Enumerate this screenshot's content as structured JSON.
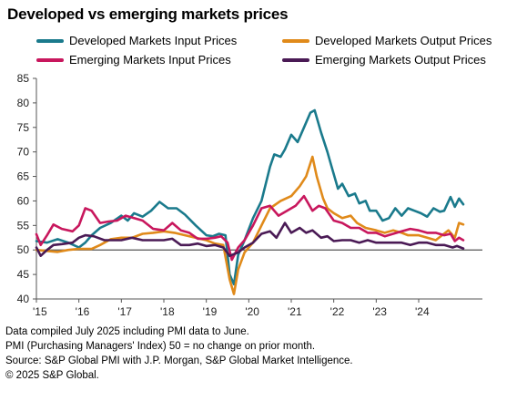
{
  "title": "Developed vs emerging markets prices",
  "notes": [
    "Data compiled July 2025 including PMI data to June.",
    "PMI (Purchasing Managers' Index) 50 = no change on prior month.",
    "Source: S&P Global PMI with J.P. Morgan, S&P Global Market Intelligence.",
    "© 2025 S&P Global."
  ],
  "chart_data": {
    "type": "line",
    "title": "Developed vs emerging markets prices",
    "xlabel": "",
    "ylabel": "",
    "ylim": [
      40,
      85
    ],
    "yticks": [
      40,
      45,
      50,
      55,
      60,
      65,
      70,
      75,
      80,
      85
    ],
    "xlim": [
      2015.0,
      2025.5
    ],
    "xticks": [
      {
        "x": 2015,
        "label": "'15"
      },
      {
        "x": 2016,
        "label": "'16"
      },
      {
        "x": 2017,
        "label": "'17"
      },
      {
        "x": 2018,
        "label": "'18"
      },
      {
        "x": 2019,
        "label": "'19"
      },
      {
        "x": 2020,
        "label": "'20"
      },
      {
        "x": 2021,
        "label": "'21"
      },
      {
        "x": 2022,
        "label": "'22"
      },
      {
        "x": 2023,
        "label": "'23"
      },
      {
        "x": 2024,
        "label": "'24"
      }
    ],
    "reference_line": 50,
    "grid": false,
    "legend_position": "top",
    "series": [
      {
        "name": "Developed Markets Input Prices",
        "color": "#1a7a8c",
        "points": [
          [
            2015.0,
            51.8
          ],
          [
            2015.25,
            51.5
          ],
          [
            2015.5,
            52.2
          ],
          [
            2015.75,
            51.5
          ],
          [
            2016.0,
            50.5
          ],
          [
            2016.15,
            51.5
          ],
          [
            2016.3,
            53
          ],
          [
            2016.5,
            54.5
          ],
          [
            2016.75,
            55.5
          ],
          [
            2017.0,
            57
          ],
          [
            2017.15,
            56
          ],
          [
            2017.3,
            57.5
          ],
          [
            2017.5,
            56.8
          ],
          [
            2017.7,
            58
          ],
          [
            2017.9,
            59.8
          ],
          [
            2018.1,
            58.5
          ],
          [
            2018.3,
            58.5
          ],
          [
            2018.5,
            57.2
          ],
          [
            2018.75,
            55
          ],
          [
            2019.0,
            53
          ],
          [
            2019.15,
            52.8
          ],
          [
            2019.3,
            53.3
          ],
          [
            2019.45,
            53
          ],
          [
            2019.55,
            45
          ],
          [
            2019.65,
            43
          ],
          [
            2019.75,
            49
          ],
          [
            2019.9,
            52
          ],
          [
            2020.1,
            56.5
          ],
          [
            2020.3,
            60
          ],
          [
            2020.5,
            67
          ],
          [
            2020.6,
            69.5
          ],
          [
            2020.75,
            69
          ],
          [
            2020.85,
            70.5
          ],
          [
            2021.0,
            73.5
          ],
          [
            2021.15,
            72
          ],
          [
            2021.3,
            75
          ],
          [
            2021.45,
            78
          ],
          [
            2021.55,
            78.5
          ],
          [
            2021.7,
            74
          ],
          [
            2021.85,
            70
          ],
          [
            2021.95,
            67
          ],
          [
            2022.1,
            62.5
          ],
          [
            2022.2,
            63.5
          ],
          [
            2022.35,
            61
          ],
          [
            2022.5,
            61.5
          ],
          [
            2022.6,
            59.5
          ],
          [
            2022.75,
            60
          ],
          [
            2022.85,
            58
          ],
          [
            2023.0,
            58
          ],
          [
            2023.15,
            56
          ],
          [
            2023.3,
            56.5
          ],
          [
            2023.45,
            58.5
          ],
          [
            2023.6,
            57
          ],
          [
            2023.75,
            58.5
          ],
          [
            2023.9,
            58
          ],
          [
            2024.05,
            57.5
          ],
          [
            2024.2,
            56.8
          ],
          [
            2024.35,
            58.5
          ],
          [
            2024.5,
            57.8
          ],
          [
            2024.6,
            58
          ],
          [
            2024.75,
            60.8
          ],
          [
            2024.85,
            58.8
          ],
          [
            2024.95,
            60.5
          ],
          [
            2025.05,
            59.3
          ]
        ]
      },
      {
        "name": "Developed Markets Output Prices",
        "color": "#e08a1a",
        "points": [
          [
            2015.0,
            50
          ],
          [
            2015.25,
            49.8
          ],
          [
            2015.5,
            49.6
          ],
          [
            2015.75,
            50
          ],
          [
            2016.0,
            50.2
          ],
          [
            2016.3,
            50.2
          ],
          [
            2016.5,
            51
          ],
          [
            2016.75,
            52.2
          ],
          [
            2017.0,
            52.5
          ],
          [
            2017.25,
            52.5
          ],
          [
            2017.5,
            53.3
          ],
          [
            2017.75,
            53.5
          ],
          [
            2018.0,
            53.8
          ],
          [
            2018.25,
            53.5
          ],
          [
            2018.5,
            53
          ],
          [
            2018.75,
            52.5
          ],
          [
            2019.0,
            52
          ],
          [
            2019.2,
            51.3
          ],
          [
            2019.4,
            51
          ],
          [
            2019.55,
            44
          ],
          [
            2019.65,
            41
          ],
          [
            2019.75,
            46
          ],
          [
            2019.9,
            49.5
          ],
          [
            2020.1,
            51.5
          ],
          [
            2020.3,
            55
          ],
          [
            2020.5,
            58.5
          ],
          [
            2020.75,
            60
          ],
          [
            2021.0,
            61
          ],
          [
            2021.2,
            63
          ],
          [
            2021.35,
            65
          ],
          [
            2021.5,
            69
          ],
          [
            2021.6,
            65
          ],
          [
            2021.75,
            60.5
          ],
          [
            2021.85,
            58.5
          ],
          [
            2022.0,
            57.5
          ],
          [
            2022.2,
            56.5
          ],
          [
            2022.4,
            57
          ],
          [
            2022.55,
            55.5
          ],
          [
            2022.75,
            54.5
          ],
          [
            2023.0,
            54
          ],
          [
            2023.2,
            53.5
          ],
          [
            2023.4,
            54
          ],
          [
            2023.6,
            53.5
          ],
          [
            2023.75,
            53
          ],
          [
            2024.0,
            53
          ],
          [
            2024.2,
            52.5
          ],
          [
            2024.4,
            52
          ],
          [
            2024.55,
            53
          ],
          [
            2024.7,
            54
          ],
          [
            2024.85,
            52.5
          ],
          [
            2024.95,
            55.5
          ],
          [
            2025.05,
            55.2
          ]
        ]
      },
      {
        "name": "Emerging Markets Input Prices",
        "color": "#c8175d",
        "points": [
          [
            2015.0,
            53.2
          ],
          [
            2015.1,
            51
          ],
          [
            2015.25,
            53
          ],
          [
            2015.4,
            55.2
          ],
          [
            2015.6,
            54.3
          ],
          [
            2015.85,
            53.8
          ],
          [
            2016.0,
            55
          ],
          [
            2016.15,
            58.5
          ],
          [
            2016.3,
            58
          ],
          [
            2016.5,
            55.5
          ],
          [
            2016.7,
            55.8
          ],
          [
            2016.9,
            56
          ],
          [
            2017.1,
            57
          ],
          [
            2017.3,
            56.5
          ],
          [
            2017.5,
            56
          ],
          [
            2017.75,
            54.3
          ],
          [
            2018.0,
            54
          ],
          [
            2018.2,
            55.5
          ],
          [
            2018.4,
            54
          ],
          [
            2018.6,
            53.5
          ],
          [
            2018.8,
            52.3
          ],
          [
            2019.0,
            52.3
          ],
          [
            2019.2,
            52.5
          ],
          [
            2019.35,
            52.8
          ],
          [
            2019.5,
            51.5
          ],
          [
            2019.6,
            48
          ],
          [
            2019.75,
            50.5
          ],
          [
            2019.9,
            52
          ],
          [
            2020.1,
            55
          ],
          [
            2020.3,
            58.5
          ],
          [
            2020.5,
            59
          ],
          [
            2020.7,
            57
          ],
          [
            2020.9,
            58
          ],
          [
            2021.1,
            59
          ],
          [
            2021.3,
            61
          ],
          [
            2021.5,
            58
          ],
          [
            2021.65,
            59
          ],
          [
            2021.8,
            58.5
          ],
          [
            2022.0,
            56
          ],
          [
            2022.2,
            55.5
          ],
          [
            2022.4,
            54.5
          ],
          [
            2022.6,
            54.5
          ],
          [
            2022.8,
            53.5
          ],
          [
            2023.0,
            53.5
          ],
          [
            2023.2,
            52.8
          ],
          [
            2023.4,
            53.3
          ],
          [
            2023.6,
            53.8
          ],
          [
            2023.8,
            54.3
          ],
          [
            2024.0,
            54
          ],
          [
            2024.2,
            53.5
          ],
          [
            2024.4,
            53.5
          ],
          [
            2024.6,
            53
          ],
          [
            2024.75,
            53.3
          ],
          [
            2024.85,
            51.8
          ],
          [
            2024.95,
            52.5
          ],
          [
            2025.05,
            52
          ]
        ]
      },
      {
        "name": "Emerging Markets Output Prices",
        "color": "#4a1a55",
        "points": [
          [
            2015.0,
            50.5
          ],
          [
            2015.1,
            48.8
          ],
          [
            2015.25,
            50
          ],
          [
            2015.4,
            51
          ],
          [
            2015.6,
            51.2
          ],
          [
            2015.85,
            51.5
          ],
          [
            2016.0,
            52.5
          ],
          [
            2016.15,
            53
          ],
          [
            2016.35,
            52.8
          ],
          [
            2016.6,
            52
          ],
          [
            2016.8,
            52
          ],
          [
            2017.0,
            52
          ],
          [
            2017.25,
            52.5
          ],
          [
            2017.5,
            52
          ],
          [
            2017.75,
            52
          ],
          [
            2018.0,
            52
          ],
          [
            2018.2,
            52.3
          ],
          [
            2018.4,
            51
          ],
          [
            2018.6,
            51
          ],
          [
            2018.8,
            51.3
          ],
          [
            2019.0,
            50.8
          ],
          [
            2019.2,
            51
          ],
          [
            2019.4,
            50.5
          ],
          [
            2019.55,
            48.8
          ],
          [
            2019.75,
            49.5
          ],
          [
            2019.9,
            50.5
          ],
          [
            2020.1,
            51.5
          ],
          [
            2020.3,
            53.3
          ],
          [
            2020.5,
            53.8
          ],
          [
            2020.65,
            52.5
          ],
          [
            2020.85,
            55.5
          ],
          [
            2021.0,
            53.5
          ],
          [
            2021.2,
            54.5
          ],
          [
            2021.35,
            53.5
          ],
          [
            2021.5,
            54
          ],
          [
            2021.7,
            52.5
          ],
          [
            2021.85,
            52.8
          ],
          [
            2022.0,
            51.8
          ],
          [
            2022.2,
            52
          ],
          [
            2022.4,
            52
          ],
          [
            2022.6,
            51.5
          ],
          [
            2022.8,
            52
          ],
          [
            2023.0,
            51.5
          ],
          [
            2023.2,
            51.5
          ],
          [
            2023.4,
            51.5
          ],
          [
            2023.6,
            51.5
          ],
          [
            2023.8,
            51
          ],
          [
            2024.0,
            51.5
          ],
          [
            2024.2,
            51.5
          ],
          [
            2024.4,
            51
          ],
          [
            2024.6,
            51
          ],
          [
            2024.8,
            50.5
          ],
          [
            2024.9,
            50.8
          ],
          [
            2025.05,
            50.3
          ]
        ]
      }
    ]
  }
}
